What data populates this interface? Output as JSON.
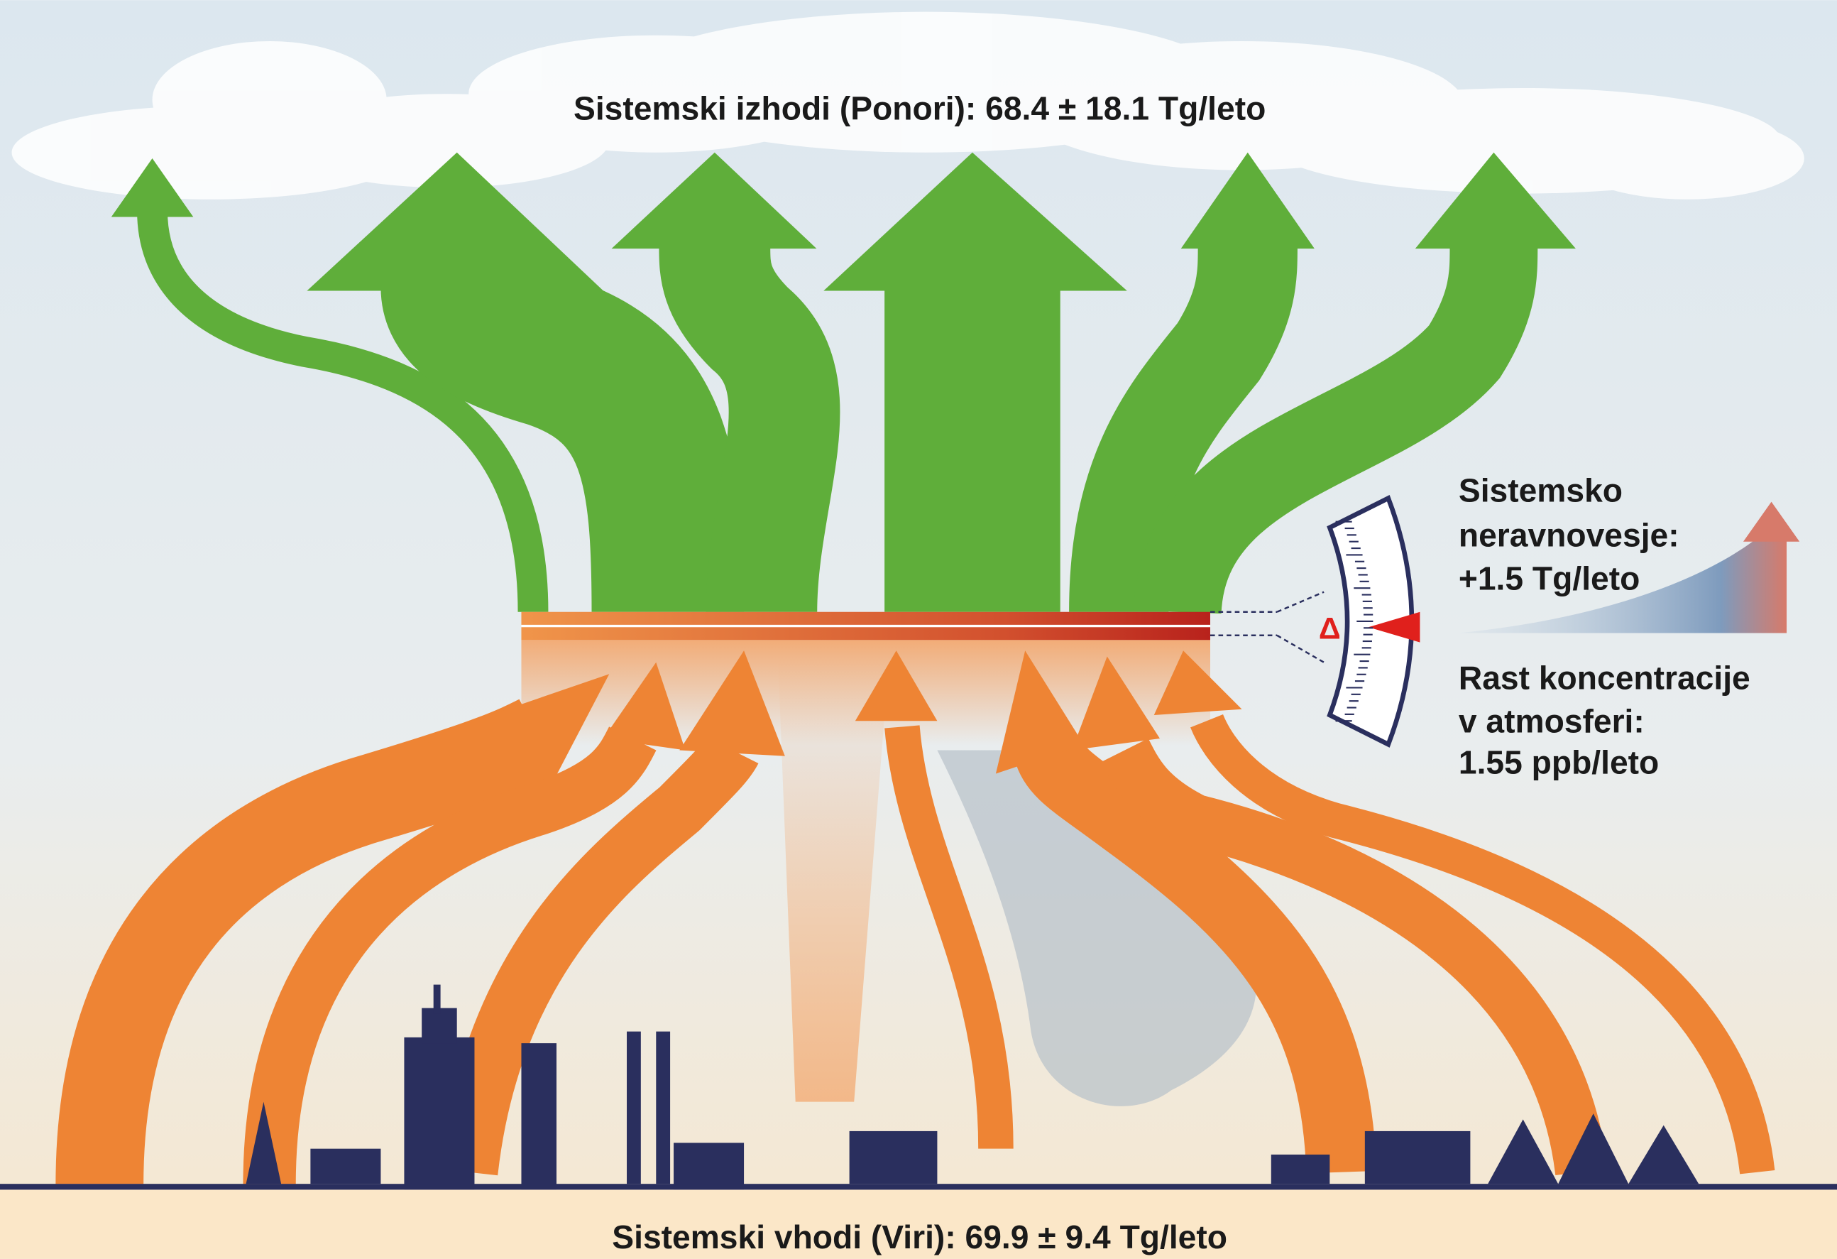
{
  "header": {
    "title": "Sistemski izhodi (Ponori): 68.4 ± 18.1 Tg/leto"
  },
  "footer": {
    "title": "Sistemski vhodi (Viri): 69.9 ± 9.4 Tg/leto"
  },
  "imbalance": {
    "symbol": "Δ",
    "lines": [
      "Sistemsko",
      "neravnovesje:",
      "+1.5 Tg/leto"
    ]
  },
  "growth": {
    "lines": [
      "Rast koncentracije",
      "v atmosferi:",
      "1.55 ppb/leto"
    ]
  }
}
